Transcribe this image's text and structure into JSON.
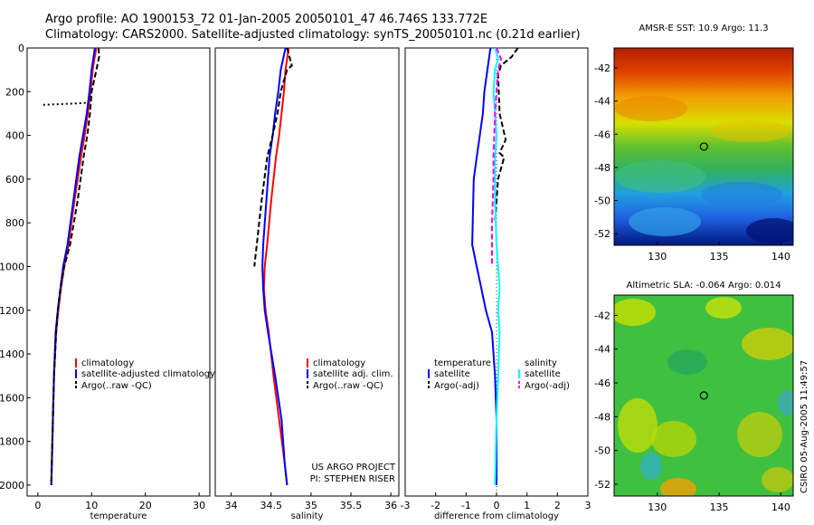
{
  "header": {
    "line1": "Argo profile: AO 1900153_72 01-Jan-2005 20050101_47 46.746S 133.772E",
    "line2": "Climatology: CARS2000. Satellite-adjusted climatology: synTS_20050101.nc (0.21d earlier)"
  },
  "credits": {
    "project": "US ARGO PROJECT",
    "pi": "PI: STEPHEN RISER",
    "stamp": "CSIRO 05-Aug-2005 11:49:57"
  },
  "colors": {
    "climatology": "#ff0000",
    "satellite": "#0000ff",
    "argo": "#000000",
    "satellite_salinity": "#00ffff",
    "argo_salinity": "#ff00ff"
  },
  "chart_data": [
    {
      "type": "line",
      "xlabel": "temperature",
      "xlim": [
        -2,
        32
      ],
      "ylim": [
        2050,
        0
      ],
      "xticks": [
        0,
        10,
        20,
        30
      ],
      "yticks": [
        0,
        200,
        400,
        600,
        800,
        1000,
        1200,
        1400,
        1600,
        1800,
        2000
      ],
      "legend": [
        "climatology",
        "satellite-adjusted climatology",
        "Argo(..raw -QC)"
      ],
      "series": [
        {
          "name": "climatology",
          "color": "#ff0000",
          "style": "solid",
          "x": [
            10.9,
            10.5,
            10.2,
            9.8,
            9.3,
            8.7,
            8.0,
            6.8,
            5.7,
            4.9,
            4.3,
            3.8,
            3.4,
            3.0,
            2.8,
            2.6,
            2.5
          ],
          "y": [
            0,
            50,
            100,
            200,
            300,
            400,
            500,
            700,
            900,
            1000,
            1100,
            1200,
            1300,
            1500,
            1700,
            1900,
            2000
          ]
        },
        {
          "name": "satellite-adjusted climatology",
          "color": "#0000ff",
          "style": "solid",
          "x": [
            10.6,
            10.3,
            10.0,
            9.6,
            9.1,
            8.4,
            7.7,
            6.6,
            5.5,
            4.7,
            4.2,
            3.7,
            3.3,
            3.0,
            2.8,
            2.6,
            2.5
          ],
          "y": [
            0,
            50,
            100,
            200,
            300,
            400,
            500,
            700,
            900,
            1000,
            1100,
            1200,
            1300,
            1500,
            1700,
            1900,
            2000
          ]
        },
        {
          "name": "Argo(..raw -QC)",
          "color": "#000000",
          "style": "dash",
          "x": [
            11.3,
            11.4,
            10.9,
            10.0,
            9.7,
            9.2,
            8.5,
            7.4,
            6.0,
            4.9,
            4.2,
            3.7,
            3.4,
            3.0,
            2.8,
            2.6,
            2.5
          ],
          "y": [
            0,
            40,
            100,
            200,
            300,
            400,
            500,
            700,
            900,
            1000,
            1100,
            1200,
            1300,
            1500,
            1700,
            1900,
            2000
          ]
        },
        {
          "name": "",
          "color": "#000000",
          "style": "dot",
          "x": [
            1.0,
            3.0,
            5.0,
            7.0,
            8.5,
            9.5
          ],
          "y": [
            260,
            258,
            256,
            254,
            252,
            250
          ]
        }
      ]
    },
    {
      "type": "line",
      "xlabel": "salinity",
      "xlim": [
        33.8,
        36.1
      ],
      "ylim": [
        2050,
        0
      ],
      "xticks": [
        34,
        34.5,
        35,
        35.5,
        36
      ],
      "legend": [
        "climatology",
        "satellite adj. clim.",
        "Argo(..raw -QC)"
      ],
      "series": [
        {
          "name": "climatology",
          "color": "#ff0000",
          "style": "solid",
          "x": [
            34.72,
            34.7,
            34.68,
            34.66,
            34.63,
            34.6,
            34.56,
            34.5,
            34.45,
            34.42,
            34.41,
            34.43,
            34.47,
            34.53,
            34.6,
            34.67,
            34.7
          ],
          "y": [
            0,
            50,
            100,
            200,
            300,
            400,
            500,
            700,
            900,
            1000,
            1100,
            1200,
            1300,
            1500,
            1700,
            1900,
            2000
          ]
        },
        {
          "name": "satellite adj. clim.",
          "color": "#0000ff",
          "style": "solid",
          "x": [
            34.68,
            34.65,
            34.62,
            34.59,
            34.55,
            34.52,
            34.48,
            34.44,
            34.4,
            34.39,
            34.4,
            34.42,
            34.46,
            34.55,
            34.63,
            34.67,
            34.7
          ],
          "y": [
            0,
            50,
            100,
            200,
            300,
            400,
            500,
            700,
            900,
            1000,
            1100,
            1200,
            1300,
            1500,
            1700,
            1900,
            2000
          ]
        },
        {
          "name": "Argo(..raw -QC)",
          "color": "#000000",
          "style": "dash",
          "x": [
            34.7,
            34.76,
            34.7,
            34.62,
            34.58,
            34.52,
            34.45,
            34.38,
            34.32,
            34.29
          ],
          "y": [
            0,
            80,
            100,
            200,
            300,
            400,
            500,
            700,
            900,
            1000
          ]
        }
      ]
    },
    {
      "type": "line",
      "xlabel": "difference from climatology",
      "xlim": [
        -3,
        3
      ],
      "ylim": [
        2050,
        0
      ],
      "xticks": [
        -3,
        -2,
        -1,
        0,
        1,
        2,
        3
      ],
      "legend_temperature": {
        "title": "temperature",
        "entries": [
          "satellite",
          "Argo(-adj)"
        ]
      },
      "legend_salinity": {
        "title": "salinity",
        "entries": [
          "satellite",
          "Argo(-adj)"
        ]
      },
      "series": [
        {
          "name": "satellite",
          "color": "#0000ff",
          "style": "solid",
          "x": [
            -0.2,
            -0.25,
            -0.3,
            -0.4,
            -0.45,
            -0.55,
            -0.65,
            -0.75,
            -0.8,
            -0.65,
            -0.5,
            -0.35,
            -0.15,
            -0.05,
            0.0,
            0.0
          ],
          "y": [
            0,
            50,
            100,
            200,
            300,
            400,
            500,
            600,
            900,
            1000,
            1100,
            1200,
            1300,
            1500,
            1700,
            2000
          ]
        },
        {
          "name": "Argo(-adj)",
          "color": "#000000",
          "style": "dash",
          "x": [
            0.7,
            0.5,
            0.15,
            0.05,
            0.1,
            0.3,
            0.1,
            0.25,
            0.05,
            -0.05
          ],
          "y": [
            0,
            40,
            80,
            120,
            300,
            420,
            480,
            500,
            600,
            800
          ]
        },
        {
          "name": "satellite",
          "color": "#00ffff",
          "style": "solid",
          "x": [
            -0.05,
            0.05,
            -0.05,
            -0.1,
            -0.05,
            0.0,
            -0.05,
            -0.05,
            0.0,
            0.05,
            0.1,
            0.05,
            0.1,
            0.05,
            0.0,
            -0.05
          ],
          "y": [
            0,
            50,
            100,
            200,
            300,
            400,
            500,
            700,
            900,
            1000,
            1100,
            1200,
            1300,
            1500,
            1700,
            2000
          ]
        },
        {
          "name": "Argo(-adj)",
          "color": "#ff00ff",
          "style": "dash",
          "x": [
            0.0,
            0.15,
            0.05,
            -0.05,
            -0.1,
            -0.1,
            -0.15,
            -0.15
          ],
          "y": [
            0,
            50,
            100,
            300,
            500,
            600,
            800,
            1000
          ]
        }
      ]
    },
    {
      "type": "heatmap",
      "title": "AMSR-E SST: 10.9 Argo: 11.3",
      "xlim": [
        126.5,
        141
      ],
      "ylim": [
        -52.7,
        -40.8
      ],
      "xticks": [
        130,
        135,
        140
      ],
      "yticks": [
        -42,
        -44,
        -46,
        -48,
        -50,
        -52
      ],
      "marker": {
        "x": 133.772,
        "y": -46.746
      }
    },
    {
      "type": "heatmap",
      "title": "Altimetric SLA: -0.064 Argo: 0.014",
      "xlim": [
        126.5,
        141
      ],
      "ylim": [
        -52.7,
        -40.8
      ],
      "xticks": [
        130,
        135,
        140
      ],
      "yticks": [
        -42,
        -44,
        -46,
        -48,
        -50,
        -52
      ],
      "marker": {
        "x": 133.772,
        "y": -46.746
      }
    }
  ]
}
